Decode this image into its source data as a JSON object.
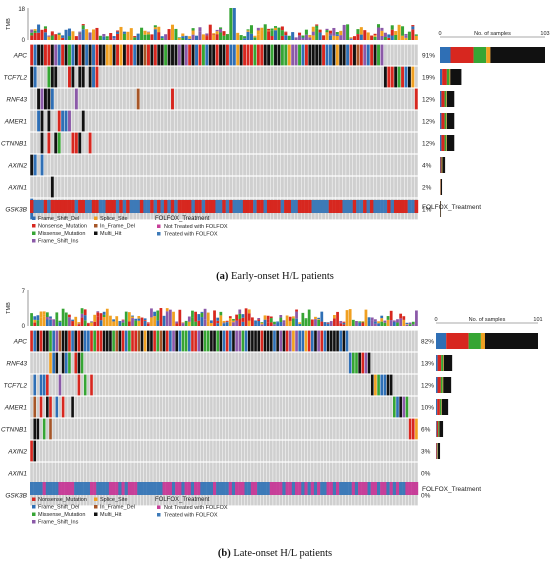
{
  "colors": {
    "Frame_Shift_Del": "#2f6fb5",
    "Nonsense_Mutation": "#d7271f",
    "Missense_Mutation": "#36a534",
    "Frame_Shift_Ins": "#8b59a8",
    "Splice_Site": "#f0a021",
    "In_Frame_Del": "#a65628",
    "Multi_Hit": "#111111",
    "Wild": "#cfcfcf",
    "Not Treated with FOLFOX": "#c73f99",
    "Treated with FOLFOX": "#3d7ab8"
  },
  "chart_data": [
    {
      "type": "oncoplot",
      "caption_label": "(a)",
      "caption_text": "Early-onset H/L patients",
      "tmb_label": "TMB",
      "tmb_ticks": [
        "0",
        "18"
      ],
      "samples_label": "No. of samples",
      "samples_ticks": [
        "0",
        "103"
      ],
      "samples_max": 103,
      "n_samples": 113,
      "genes": [
        "APC",
        "TCF7L2",
        "RNF43",
        "AMER1",
        "CTNNB1",
        "AXIN2",
        "AXIN1",
        "GSK3B"
      ],
      "percent": [
        "91%",
        "19%",
        "12%",
        "12%",
        "12%",
        "4%",
        "2%",
        "1%"
      ],
      "gene_counts": [
        103,
        21,
        14,
        14,
        14,
        5,
        2,
        1
      ],
      "legend_items": [
        "Frame_Shift_Del",
        "Nonsense_Mutation",
        "Missense_Mutation",
        "Frame_Shift_Ins",
        "Splice_Site",
        "In_Frame_Del",
        "Multi_Hit"
      ],
      "treatment_title": "FOLFOX_Treatment",
      "treatment_items": [
        "Not Treated with FOLFOX",
        "Treated with FOLFOX"
      ],
      "annotation_label": "FOLFOX_Treatment"
    },
    {
      "type": "oncoplot",
      "caption_label": "(b)",
      "caption_text": "Late-onset H/L patients",
      "tmb_label": "TMB",
      "tmb_ticks": [
        "0",
        "7"
      ],
      "samples_label": "No. of samples",
      "samples_ticks": [
        "0",
        "101"
      ],
      "samples_max": 101,
      "n_samples": 123,
      "genes": [
        "APC",
        "RNF43",
        "TCF7L2",
        "AMER1",
        "CTNNB1",
        "AXIN2",
        "AXIN1",
        "GSK3B"
      ],
      "percent": [
        "82%",
        "13%",
        "12%",
        "10%",
        "6%",
        "3%",
        "0%",
        "0%"
      ],
      "gene_counts": [
        101,
        16,
        15,
        12,
        7,
        4,
        0,
        0
      ],
      "legend_items": [
        "Nonsense_Mutation",
        "Frame_Shift_Del",
        "Missense_Mutation",
        "Frame_Shift_Ins",
        "Splice_Site",
        "In_Frame_Del",
        "Multi_Hit"
      ],
      "treatment_title": "FOLFOX_Treatment",
      "treatment_items": [
        "Not Treated with FOLFOX",
        "Treated with FOLFOX"
      ],
      "annotation_label": "FOLFOX_Treatment"
    }
  ]
}
